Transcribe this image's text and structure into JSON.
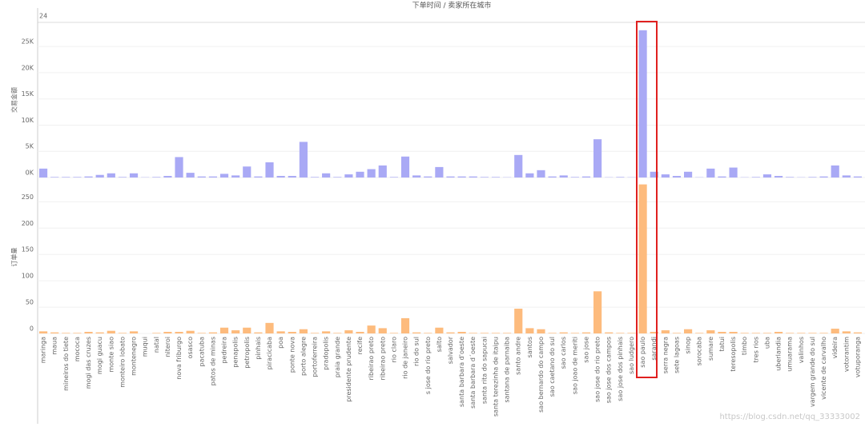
{
  "header": {
    "title": "下单时间 / 卖家所在城市",
    "label": "24"
  },
  "watermark": "https://blog.csdn.net/qq_33333002",
  "chart_data": [
    {
      "type": "bar",
      "ylabel": "交易金额",
      "color": "#a9a9f5",
      "values": [
        1700,
        100,
        100,
        100,
        200,
        500,
        800,
        100,
        800,
        50,
        100,
        300,
        3900,
        900,
        200,
        200,
        700,
        400,
        2100,
        200,
        2900,
        300,
        300,
        6800,
        100,
        800,
        100,
        600,
        1100,
        1600,
        2300,
        100,
        4000,
        400,
        200,
        2000,
        200,
        200,
        200,
        100,
        100,
        50,
        4300,
        800,
        1400,
        200,
        400,
        100,
        200,
        7300,
        50,
        100,
        50,
        28100,
        1100,
        600,
        300,
        1100,
        50,
        1700,
        200,
        1900,
        50,
        100,
        600,
        300,
        100,
        50,
        100,
        200,
        2300,
        400,
        200
      ],
      "ylim": [
        0,
        29600
      ],
      "yticks": [
        {
          "value": 0,
          "label": "0K"
        },
        {
          "value": 5000,
          "label": "5K"
        },
        {
          "value": 10000,
          "label": "10K"
        },
        {
          "value": 15000,
          "label": "15K"
        },
        {
          "value": 20000,
          "label": "20K"
        },
        {
          "value": 25000,
          "label": "25K"
        }
      ],
      "grid": true
    },
    {
      "type": "bar",
      "ylabel": "订单量",
      "color": "#fdbb7d",
      "categories": [
        "maringa",
        "maua",
        "mineiros do tiete",
        "mococa",
        "mogi das cruzes",
        "mogi guacu",
        "monte siao",
        "monteiro lobato",
        "montenegro",
        "muqui",
        "natal",
        "niteroi",
        "nova friburgo",
        "osasco",
        "pacatuba",
        "patos de minas",
        "pedreira",
        "penapolis",
        "petropolis",
        "pinhais",
        "piracicaba",
        "poa",
        "ponte nova",
        "porto alegre",
        "portoferreira",
        "pradopolis",
        "praia grande",
        "presidente prudente",
        "recife",
        "ribeirao preto",
        "ribeirao preto",
        "rio claro",
        "rio de janeiro",
        "rio do sul",
        "s jose do rio preto",
        "salto",
        "salvador",
        "santa barbara d'oeste",
        "santa barbara d´oeste",
        "santa rita do sapucai",
        "santa terezinha de itaipu",
        "santana de parnaiba",
        "santo andre",
        "santos",
        "sao bernardo do campo",
        "sao caetano do sul",
        "sao carlos",
        "sao joao de meriti",
        "sao jose",
        "sao jose do rio preto",
        "sao jose dos campos",
        "sao jose dos pinhais",
        "sao ludgero",
        "sao paulo",
        "sarandi",
        "serra negra",
        "sete lagoas",
        "sinop",
        "sorocaba",
        "sumare",
        "tatui",
        "teresopolis",
        "timbo",
        "tres rios",
        "uba",
        "uberlandia",
        "umuarama",
        "valinhos",
        "vargem grande do sul",
        "vicente de carvalho",
        "videira",
        "votorantim",
        "votuporanga"
      ],
      "values": [
        4,
        2,
        1,
        1,
        3,
        2,
        5,
        1,
        4,
        0,
        1,
        3,
        3,
        5,
        1,
        2,
        11,
        6,
        11,
        2,
        20,
        4,
        3,
        8,
        1,
        4,
        1,
        6,
        3,
        15,
        10,
        1,
        29,
        2,
        1,
        11,
        2,
        3,
        1,
        1,
        1,
        1,
        47,
        10,
        8,
        1,
        2,
        1,
        2,
        80,
        2,
        1,
        1,
        283,
        3,
        6,
        1,
        8,
        1,
        6,
        3,
        3,
        1,
        1,
        1,
        3,
        1,
        1,
        1,
        1,
        9,
        4,
        2
      ],
      "ylim": [
        0,
        290
      ],
      "yticks": [
        0,
        50,
        100,
        150,
        200,
        250
      ],
      "grid": true
    }
  ]
}
